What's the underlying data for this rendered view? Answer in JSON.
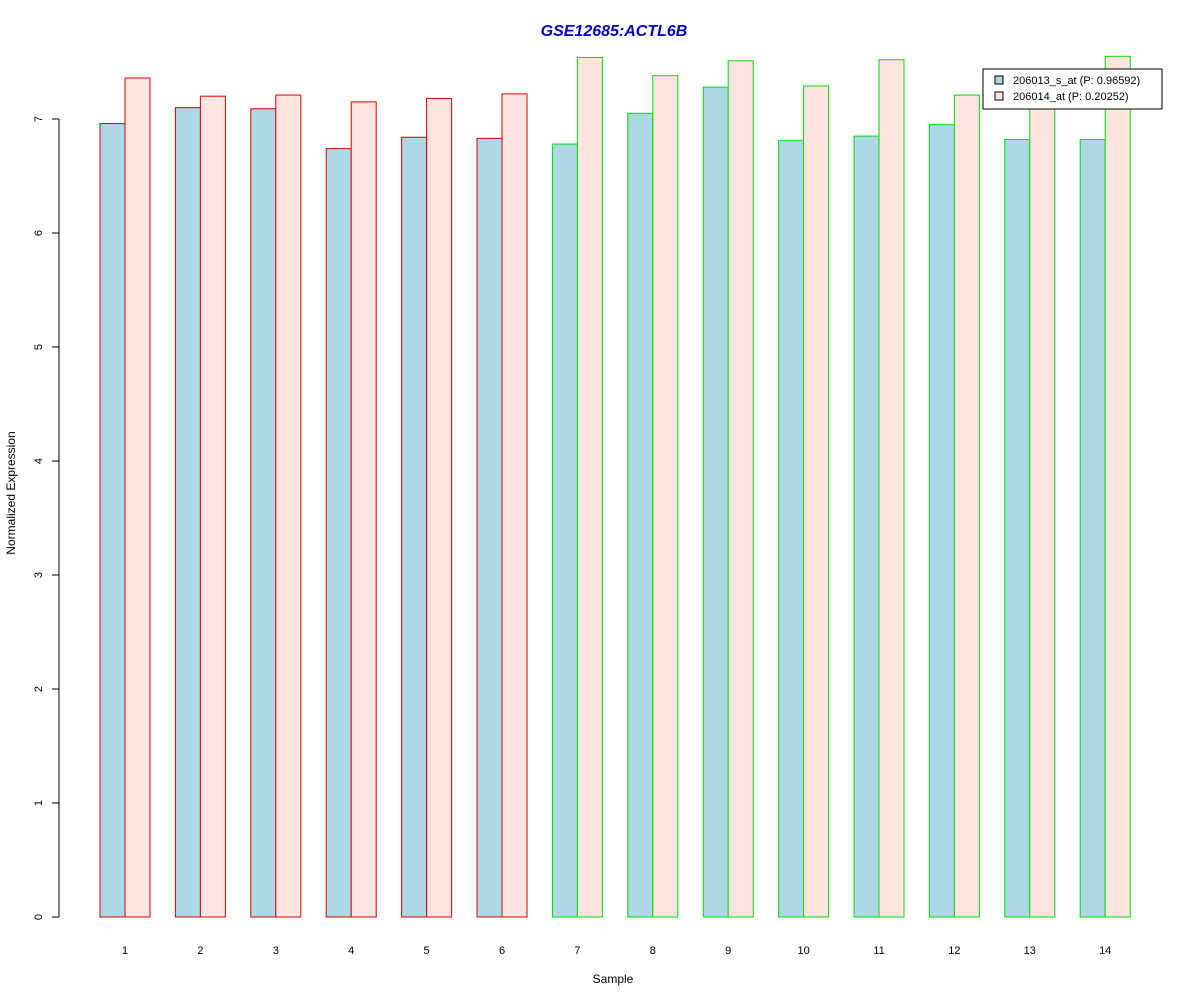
{
  "chart_data": {
    "type": "bar",
    "title": "GSE12685:ACTL6B",
    "xlabel": "Sample",
    "ylabel": "Normalized Expression",
    "ylim": [
      0,
      7.5
    ],
    "yticks": [
      "0",
      "1",
      "2",
      "3",
      "4",
      "5",
      "6",
      "7"
    ],
    "grid": false,
    "legend_position": "top-right",
    "categories": [
      "1",
      "2",
      "3",
      "4",
      "5",
      "6",
      "7",
      "8",
      "9",
      "10",
      "11",
      "12",
      "13",
      "14"
    ],
    "group_border_colors": [
      "#dd0000",
      "#dd0000",
      "#dd0000",
      "#dd0000",
      "#dd0000",
      "#dd0000",
      "#00dd00",
      "#00dd00",
      "#00dd00",
      "#00dd00",
      "#00dd00",
      "#00dd00",
      "#00dd00",
      "#00dd00"
    ],
    "series": [
      {
        "name": "206013_s_at (P: 0.96592)",
        "fill": "#add8e6",
        "values": [
          6.96,
          7.1,
          7.09,
          6.74,
          6.84,
          6.83,
          6.78,
          7.05,
          7.28,
          6.81,
          6.85,
          6.95,
          6.82,
          6.82
        ]
      },
      {
        "name": "206014_at (P: 0.20252)",
        "fill": "#ffe4e1",
        "values": [
          7.36,
          7.2,
          7.21,
          7.15,
          7.18,
          7.22,
          7.54,
          7.38,
          7.51,
          7.29,
          7.52,
          7.21,
          7.23,
          7.55
        ]
      }
    ]
  }
}
